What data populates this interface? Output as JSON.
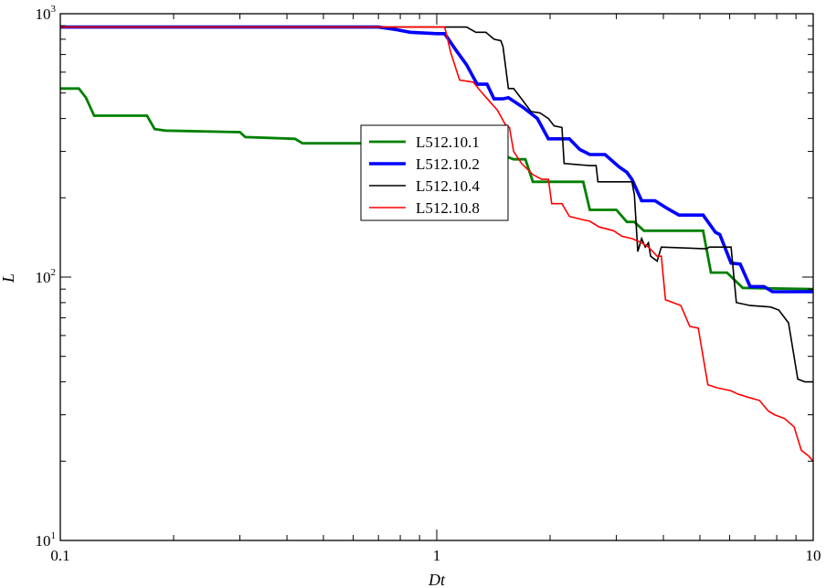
{
  "chart_data": {
    "type": "line",
    "xlabel": "Dt",
    "ylabel": "L",
    "x_scale": "log",
    "y_scale": "log",
    "xlim": [
      0.1,
      10
    ],
    "ylim": [
      10,
      1000
    ],
    "grid": false,
    "legend_position": "center",
    "x_ticks": [
      {
        "value": 0.1,
        "label": "0.1"
      },
      {
        "value": 1,
        "label": "1"
      },
      {
        "value": 10,
        "label": "10"
      }
    ],
    "y_ticks": [
      {
        "value": 10,
        "base": "10",
        "exp": "1"
      },
      {
        "value": 100,
        "base": "10",
        "exp": "2"
      },
      {
        "value": 1000,
        "base": "10",
        "exp": "3"
      }
    ],
    "series": [
      {
        "name": "L512.10.1",
        "color": "#008000",
        "width": 2.8,
        "points": [
          [
            0.1,
            520
          ],
          [
            0.112,
            520
          ],
          [
            0.117,
            480
          ],
          [
            0.123,
            410
          ],
          [
            0.17,
            410
          ],
          [
            0.178,
            365
          ],
          [
            0.19,
            360
          ],
          [
            0.3,
            355
          ],
          [
            0.31,
            340
          ],
          [
            0.42,
            335
          ],
          [
            0.44,
            322
          ],
          [
            0.7,
            322
          ],
          [
            1.3,
            300
          ],
          [
            1.5,
            290
          ],
          [
            1.6,
            280
          ],
          [
            1.72,
            280
          ],
          [
            1.8,
            230
          ],
          [
            2.45,
            230
          ],
          [
            2.55,
            180
          ],
          [
            3,
            180
          ],
          [
            3.2,
            162
          ],
          [
            3.35,
            162
          ],
          [
            3.55,
            150
          ],
          [
            5.1,
            150
          ],
          [
            5.35,
            104
          ],
          [
            5.9,
            104
          ],
          [
            6.5,
            91
          ],
          [
            10,
            90
          ]
        ]
      },
      {
        "name": "L512.10.2",
        "color": "#0000ff",
        "width": 3.6,
        "points": [
          [
            0.1,
            890
          ],
          [
            0.7,
            890
          ],
          [
            0.78,
            870
          ],
          [
            0.85,
            850
          ],
          [
            1,
            840
          ],
          [
            1.05,
            840
          ],
          [
            1.13,
            720
          ],
          [
            1.2,
            640
          ],
          [
            1.28,
            540
          ],
          [
            1.36,
            540
          ],
          [
            1.42,
            475
          ],
          [
            1.5,
            475
          ],
          [
            1.55,
            480
          ],
          [
            1.7,
            440
          ],
          [
            1.85,
            400
          ],
          [
            1.98,
            335
          ],
          [
            2.25,
            335
          ],
          [
            2.4,
            305
          ],
          [
            2.55,
            292
          ],
          [
            2.8,
            292
          ],
          [
            3.05,
            262
          ],
          [
            3.2,
            250
          ],
          [
            3.3,
            235
          ],
          [
            3.5,
            195
          ],
          [
            3.8,
            195
          ],
          [
            4.1,
            182
          ],
          [
            4.4,
            172
          ],
          [
            5.1,
            172
          ],
          [
            5.5,
            148
          ],
          [
            5.65,
            145
          ],
          [
            6.05,
            113
          ],
          [
            6.4,
            112
          ],
          [
            6.8,
            92
          ],
          [
            7.4,
            92
          ],
          [
            7.8,
            88
          ],
          [
            10,
            88
          ]
        ]
      },
      {
        "name": "L512.10.4",
        "color": "#000000",
        "width": 1.6,
        "points": [
          [
            0.1,
            890
          ],
          [
            1.05,
            890
          ],
          [
            1.2,
            890
          ],
          [
            1.27,
            850
          ],
          [
            1.35,
            850
          ],
          [
            1.42,
            800
          ],
          [
            1.48,
            790
          ],
          [
            1.5,
            750
          ],
          [
            1.55,
            520
          ],
          [
            1.6,
            520
          ],
          [
            1.68,
            475
          ],
          [
            1.78,
            425
          ],
          [
            1.88,
            420
          ],
          [
            1.98,
            400
          ],
          [
            2.05,
            375
          ],
          [
            2.15,
            370
          ],
          [
            2.18,
            270
          ],
          [
            2.55,
            265
          ],
          [
            2.65,
            265
          ],
          [
            2.68,
            230
          ],
          [
            3.3,
            230
          ],
          [
            3.35,
            205
          ],
          [
            3.42,
            125
          ],
          [
            3.5,
            140
          ],
          [
            3.58,
            130
          ],
          [
            3.65,
            135
          ],
          [
            3.7,
            120
          ],
          [
            3.85,
            115
          ],
          [
            3.95,
            130
          ],
          [
            5.2,
            128
          ],
          [
            5.3,
            130
          ],
          [
            6.05,
            130
          ],
          [
            6.25,
            80
          ],
          [
            6.8,
            78
          ],
          [
            7.7,
            77
          ],
          [
            8.1,
            75
          ],
          [
            8.6,
            67
          ],
          [
            9.1,
            41
          ],
          [
            9.5,
            40
          ],
          [
            10,
            40
          ]
        ]
      },
      {
        "name": "L512.10.8",
        "color": "#ff0000",
        "width": 1.6,
        "points": [
          [
            0.1,
            890
          ],
          [
            0.8,
            890
          ],
          [
            1.05,
            890
          ],
          [
            1.09,
            710
          ],
          [
            1.15,
            560
          ],
          [
            1.25,
            550
          ],
          [
            1.32,
            500
          ],
          [
            1.45,
            430
          ],
          [
            1.52,
            380
          ],
          [
            1.56,
            370
          ],
          [
            1.6,
            300
          ],
          [
            1.68,
            270
          ],
          [
            1.8,
            245
          ],
          [
            1.9,
            235
          ],
          [
            1.98,
            235
          ],
          [
            2.02,
            190
          ],
          [
            2.15,
            190
          ],
          [
            2.25,
            170
          ],
          [
            2.45,
            165
          ],
          [
            2.55,
            163
          ],
          [
            2.7,
            155
          ],
          [
            2.95,
            150
          ],
          [
            3.1,
            143
          ],
          [
            3.3,
            140
          ],
          [
            3.5,
            135
          ],
          [
            3.65,
            130
          ],
          [
            3.85,
            120
          ],
          [
            3.95,
            120
          ],
          [
            4.05,
            82
          ],
          [
            4.45,
            78
          ],
          [
            4.7,
            65
          ],
          [
            4.95,
            64
          ],
          [
            5.25,
            39
          ],
          [
            5.55,
            38
          ],
          [
            6.05,
            37
          ],
          [
            6.3,
            36
          ],
          [
            6.7,
            35
          ],
          [
            7.2,
            34
          ],
          [
            7.6,
            31
          ],
          [
            7.9,
            30
          ],
          [
            8.4,
            29
          ],
          [
            8.9,
            27
          ],
          [
            9.3,
            22
          ],
          [
            9.7,
            21
          ],
          [
            10,
            20
          ]
        ]
      }
    ]
  }
}
